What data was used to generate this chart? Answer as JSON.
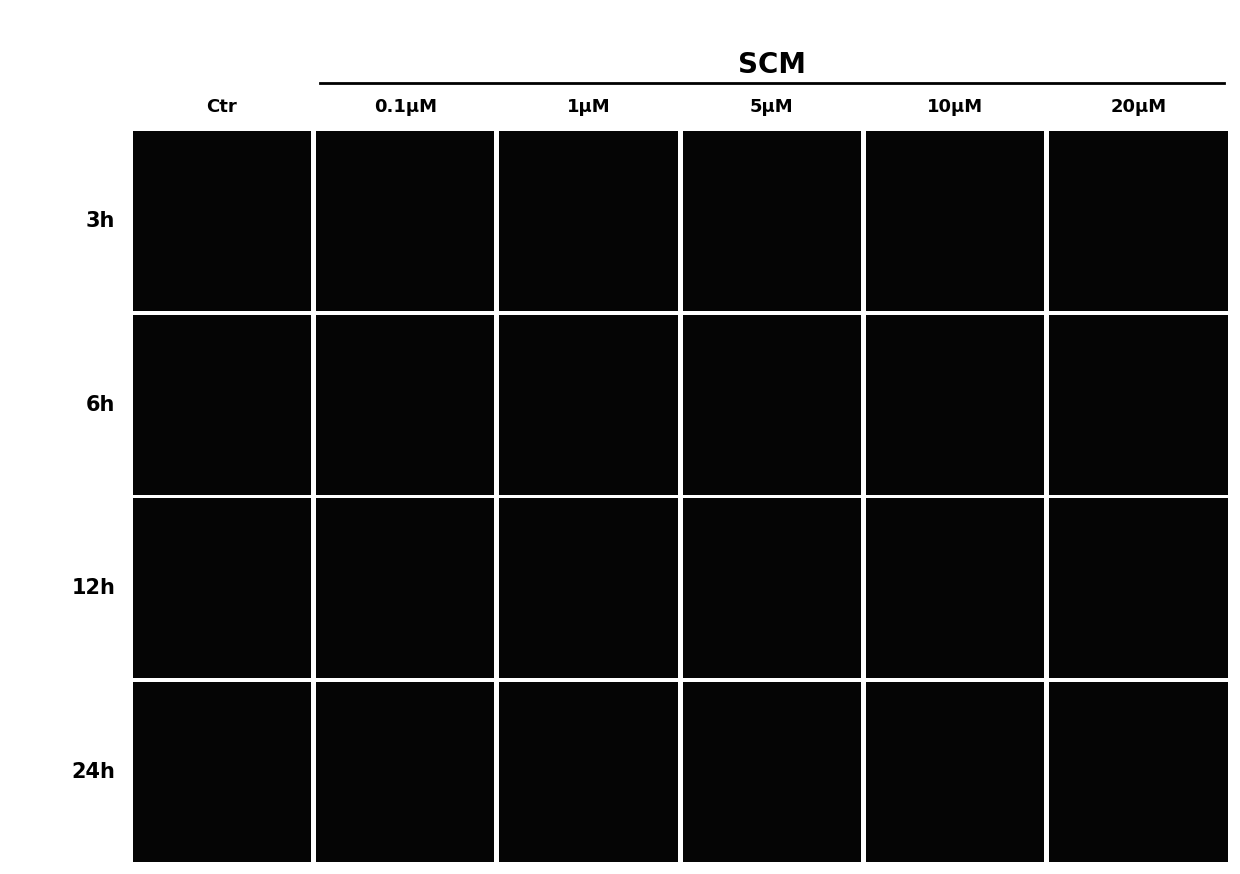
{
  "title": "SCM",
  "row_labels": [
    "3h",
    "6h",
    "12h",
    "24h"
  ],
  "col_labels": [
    "Ctr",
    "0.1μM",
    "1μM",
    "5μM",
    "10μM",
    "20μM"
  ],
  "n_rows": 4,
  "n_cols": 6,
  "figure_bg": "#ffffff",
  "cell_bg": "#050505",
  "grid_line_color": "#ffffff",
  "title_fontsize": 20,
  "label_fontsize": 13,
  "row_label_fontsize": 15
}
